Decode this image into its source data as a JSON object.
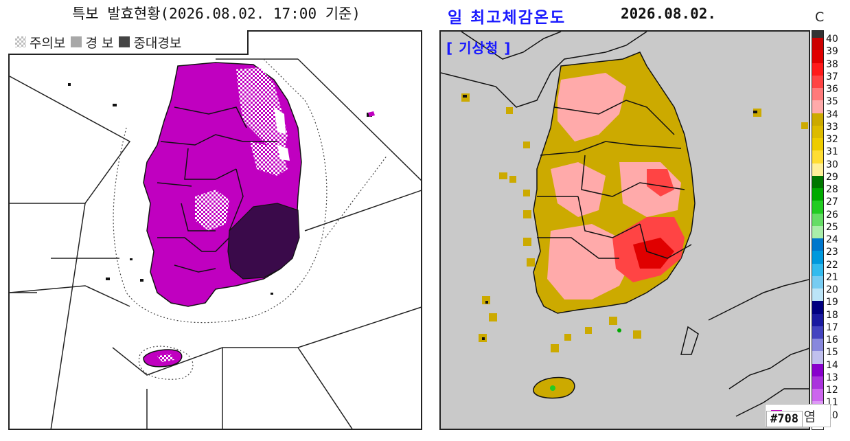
{
  "left_panel": {
    "title": "특보 발효현황(2026.08.02. 17:00 기준)",
    "legend": [
      {
        "label": "주의보",
        "color": "#d8d8d8",
        "pattern": "checker"
      },
      {
        "label": "경 보",
        "color": "#a8a8a8",
        "pattern": "solid"
      },
      {
        "label": "중대경보",
        "color": "#444444",
        "pattern": "solid"
      }
    ],
    "hazard_legend": {
      "label": "폭 염",
      "color": "#c000c0"
    },
    "colors": {
      "warning": "#c000c0",
      "severe": "#3a0a4a",
      "advisory": "#ffffff"
    }
  },
  "right_panel": {
    "title": "일 최고체감온도",
    "date": "2026.08.02.",
    "unit": "C",
    "source": "[ 기상청 ]",
    "map_id": "#708",
    "colorbar": [
      {
        "value": "40",
        "color": "#cc0000"
      },
      {
        "value": "39",
        "color": "#e00000"
      },
      {
        "value": "38",
        "color": "#ff1a1a"
      },
      {
        "value": "37",
        "color": "#ff4444"
      },
      {
        "value": "36",
        "color": "#ff7a7a"
      },
      {
        "value": "35",
        "color": "#ffaaaa"
      },
      {
        "value": "34",
        "color": "#ccaa00"
      },
      {
        "value": "33",
        "color": "#ddbb00"
      },
      {
        "value": "32",
        "color": "#eecc00"
      },
      {
        "value": "31",
        "color": "#ffdd33"
      },
      {
        "value": "30",
        "color": "#fff099"
      },
      {
        "value": "29",
        "color": "#007700"
      },
      {
        "value": "28",
        "color": "#00aa00"
      },
      {
        "value": "27",
        "color": "#22cc22"
      },
      {
        "value": "26",
        "color": "#66dd66"
      },
      {
        "value": "25",
        "color": "#aaeeaa"
      },
      {
        "value": "24",
        "color": "#0077cc"
      },
      {
        "value": "23",
        "color": "#0099dd"
      },
      {
        "value": "22",
        "color": "#33bbee"
      },
      {
        "value": "21",
        "color": "#77ccf2"
      },
      {
        "value": "20",
        "color": "#bbe4f7"
      },
      {
        "value": "19",
        "color": "#000080"
      },
      {
        "value": "18",
        "color": "#1a1aa0"
      },
      {
        "value": "17",
        "color": "#4444c0"
      },
      {
        "value": "16",
        "color": "#8888dd"
      },
      {
        "value": "15",
        "color": "#c0c0ee"
      },
      {
        "value": "14",
        "color": "#8800cc"
      },
      {
        "value": "13",
        "color": "#aa33dd"
      },
      {
        "value": "12",
        "color": "#cc66ee"
      },
      {
        "value": "11",
        "color": "#dd99f5"
      },
      {
        "value": "10",
        "color": "#eeccfa"
      }
    ]
  }
}
